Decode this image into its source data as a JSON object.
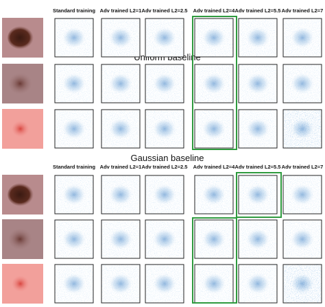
{
  "sections": [
    {
      "title": "Uniform baseline",
      "columns": [
        "Standard training",
        "Adv trained L2=1",
        "Adv trained L2=2.5",
        "Adv trained L2=4",
        "Adv trained L2=5.5",
        "Adv trained L2=7"
      ]
    },
    {
      "title": "Gaussian baseline",
      "columns": [
        "Standard training",
        "Adv trained L2=1",
        "Adv trained L2=2.5",
        "Adv trained L2=4",
        "Adv trained L2=5.5",
        "Adv trained L2=7"
      ]
    }
  ]
}
